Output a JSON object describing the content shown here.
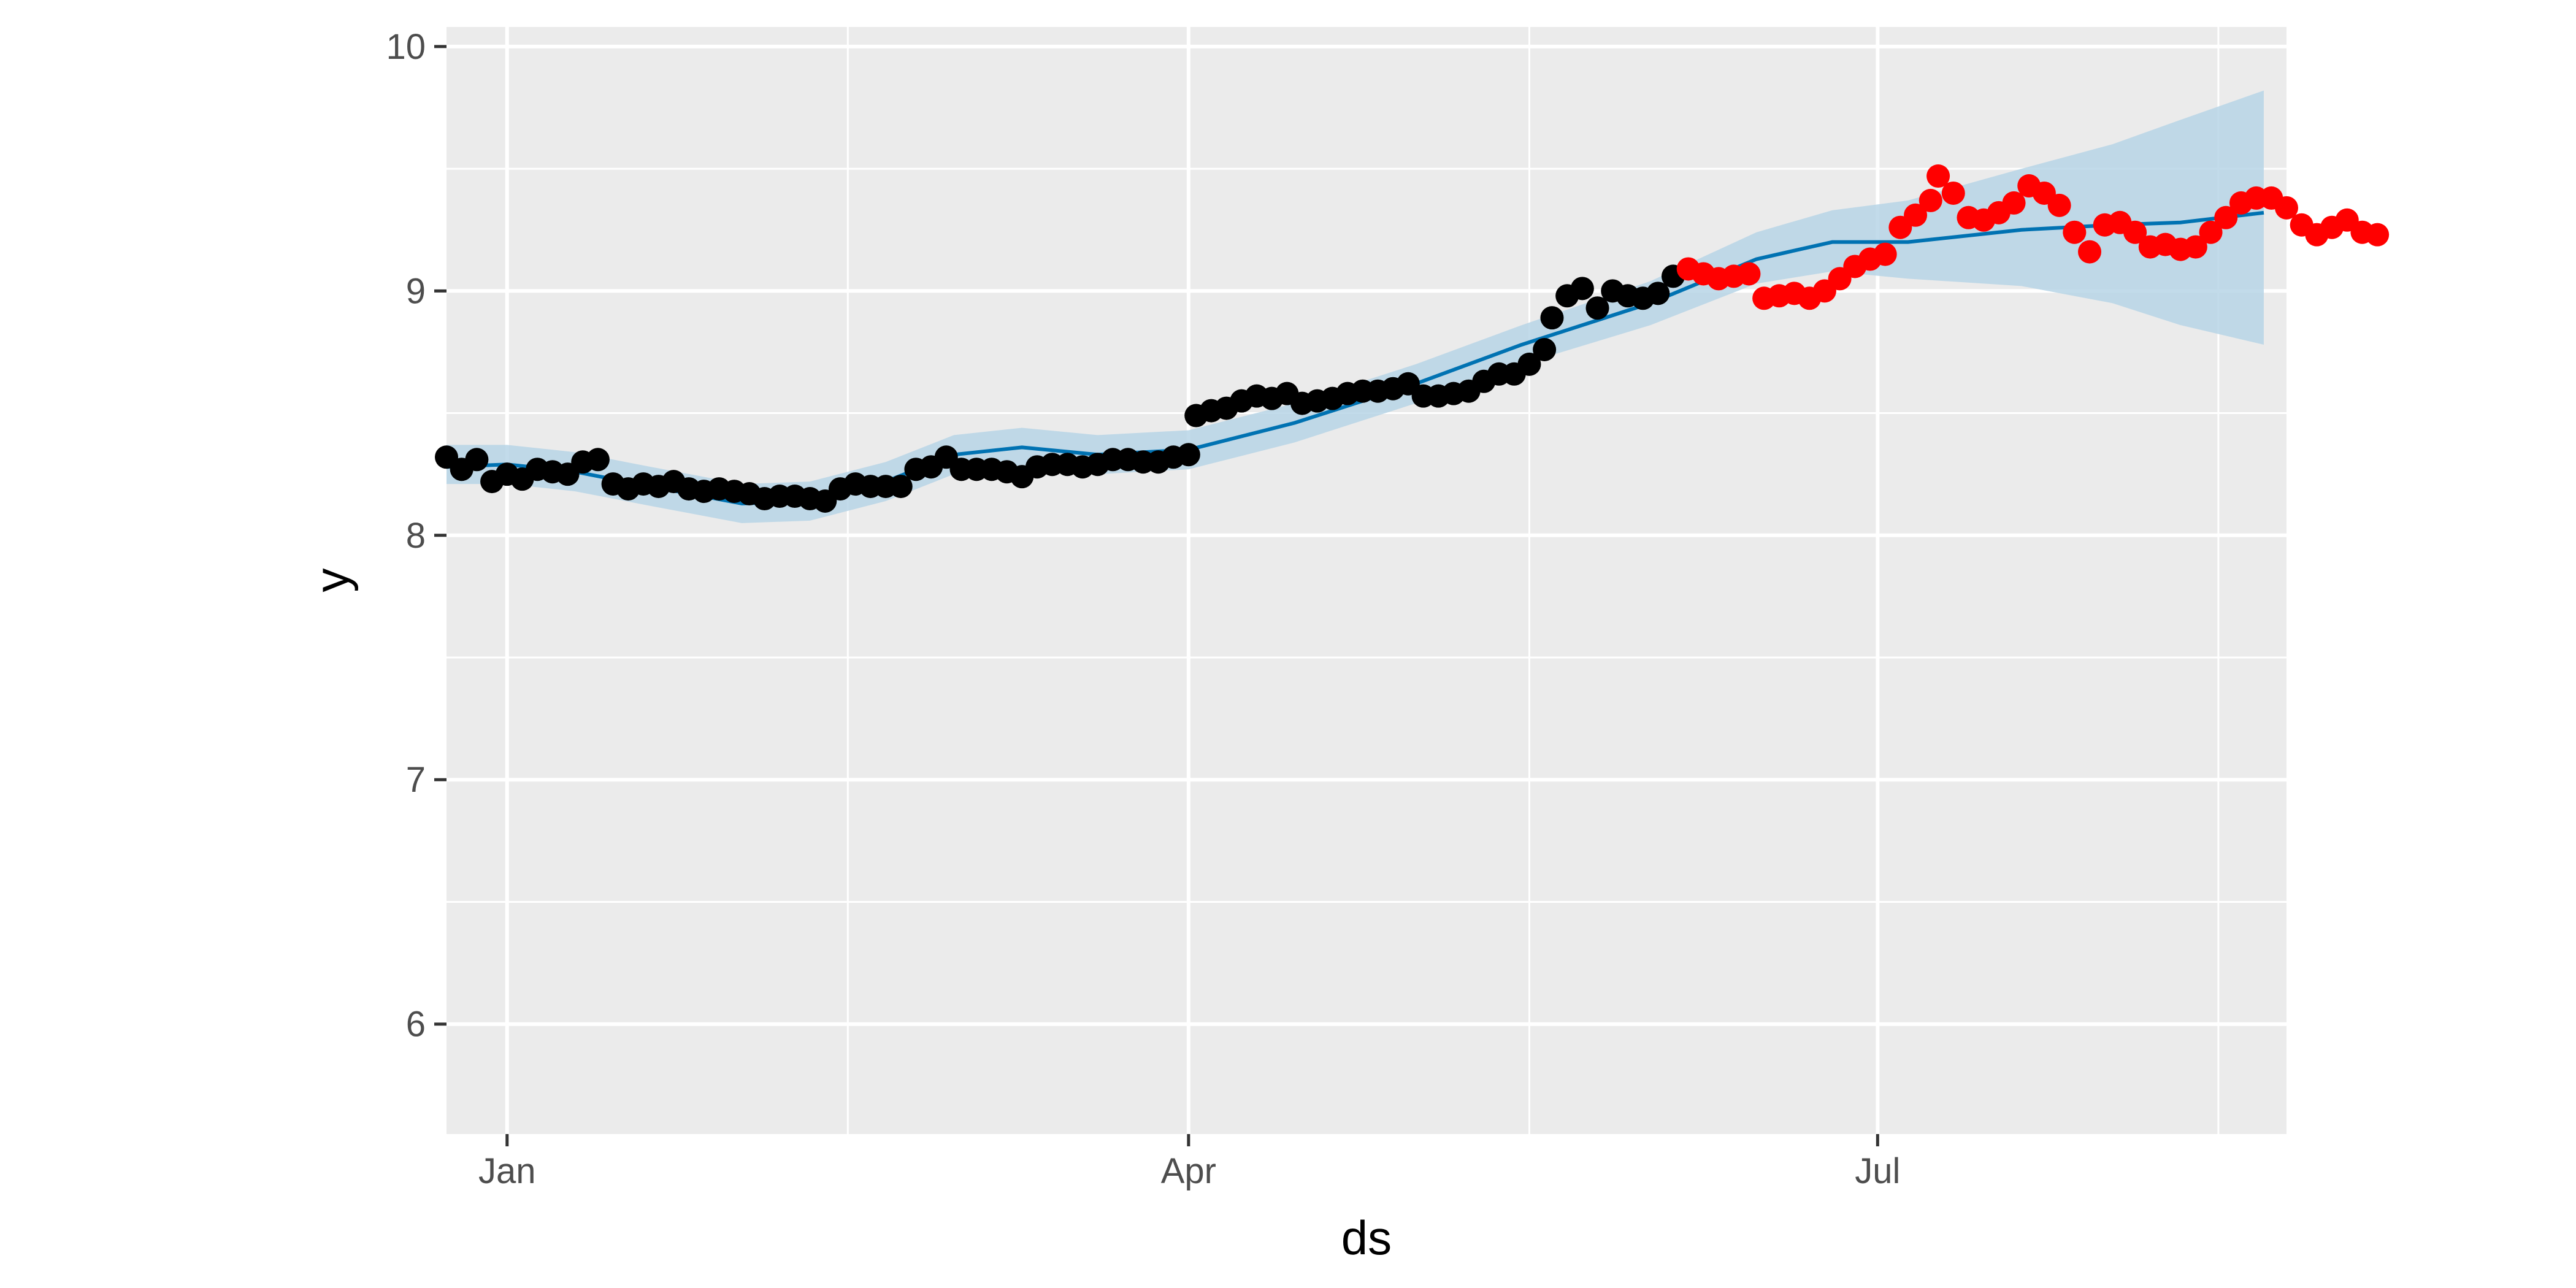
{
  "chart_data": {
    "type": "scatter",
    "title": "",
    "xlabel": "ds",
    "ylabel": "y",
    "x_type": "date",
    "xlim": [
      "2022-12-24",
      "2023-08-24"
    ],
    "ylim": [
      5.55,
      10.08
    ],
    "grid": true,
    "legend": "none",
    "x_ticks": [
      {
        "value": "2023-01-01",
        "label": "Jan"
      },
      {
        "value": "2023-04-01",
        "label": "Apr"
      },
      {
        "value": "2023-07-01",
        "label": "Jul"
      }
    ],
    "y_ticks": [
      6,
      7,
      8,
      9,
      10
    ],
    "colors": {
      "panel": "#ebebeb",
      "grid": "#ffffff",
      "history_points": "#000000",
      "future_points": "#ff0000",
      "forecast_line": "#0072b2",
      "interval_band": "#b7d5e6"
    },
    "forecast_line": [
      {
        "x": "2022-12-24",
        "y": 8.28
      },
      {
        "x": "2023-01-01",
        "y": 8.29
      },
      {
        "x": "2023-01-10",
        "y": 8.26
      },
      {
        "x": "2023-01-20",
        "y": 8.2
      },
      {
        "x": "2023-02-01",
        "y": 8.13
      },
      {
        "x": "2023-02-10",
        "y": 8.14
      },
      {
        "x": "2023-02-20",
        "y": 8.22
      },
      {
        "x": "2023-03-01",
        "y": 8.33
      },
      {
        "x": "2023-03-10",
        "y": 8.36
      },
      {
        "x": "2023-03-20",
        "y": 8.33
      },
      {
        "x": "2023-04-01",
        "y": 8.35
      },
      {
        "x": "2023-04-15",
        "y": 8.46
      },
      {
        "x": "2023-05-01",
        "y": 8.62
      },
      {
        "x": "2023-05-15",
        "y": 8.78
      },
      {
        "x": "2023-06-01",
        "y": 8.95
      },
      {
        "x": "2023-06-15",
        "y": 9.13
      },
      {
        "x": "2023-06-25",
        "y": 9.2
      },
      {
        "x": "2023-07-05",
        "y": 9.2
      },
      {
        "x": "2023-07-20",
        "y": 9.25
      },
      {
        "x": "2023-08-01",
        "y": 9.27
      },
      {
        "x": "2023-08-10",
        "y": 9.28
      },
      {
        "x": "2023-08-21",
        "y": 9.32
      }
    ],
    "interval": [
      {
        "x": "2022-12-24",
        "lower": 8.21,
        "upper": 8.37
      },
      {
        "x": "2023-01-01",
        "lower": 8.21,
        "upper": 8.37
      },
      {
        "x": "2023-01-10",
        "lower": 8.18,
        "upper": 8.34
      },
      {
        "x": "2023-01-20",
        "lower": 8.12,
        "upper": 8.28
      },
      {
        "x": "2023-02-01",
        "lower": 8.05,
        "upper": 8.21
      },
      {
        "x": "2023-02-10",
        "lower": 8.06,
        "upper": 8.22
      },
      {
        "x": "2023-02-20",
        "lower": 8.14,
        "upper": 8.3
      },
      {
        "x": "2023-03-01",
        "lower": 8.25,
        "upper": 8.41
      },
      {
        "x": "2023-03-10",
        "lower": 8.28,
        "upper": 8.44
      },
      {
        "x": "2023-03-20",
        "lower": 8.25,
        "upper": 8.41
      },
      {
        "x": "2023-04-01",
        "lower": 8.27,
        "upper": 8.43
      },
      {
        "x": "2023-04-15",
        "lower": 8.38,
        "upper": 8.54
      },
      {
        "x": "2023-05-01",
        "lower": 8.54,
        "upper": 8.7
      },
      {
        "x": "2023-05-15",
        "lower": 8.7,
        "upper": 8.86
      },
      {
        "x": "2023-06-01",
        "lower": 8.86,
        "upper": 9.04
      },
      {
        "x": "2023-06-15",
        "lower": 9.03,
        "upper": 9.24
      },
      {
        "x": "2023-06-25",
        "lower": 9.08,
        "upper": 9.33
      },
      {
        "x": "2023-07-05",
        "lower": 9.05,
        "upper": 9.37
      },
      {
        "x": "2023-07-20",
        "lower": 9.02,
        "upper": 9.5
      },
      {
        "x": "2023-08-01",
        "lower": 8.95,
        "upper": 9.6
      },
      {
        "x": "2023-08-10",
        "lower": 8.86,
        "upper": 9.7
      },
      {
        "x": "2023-08-21",
        "lower": 8.78,
        "upper": 9.82
      }
    ],
    "series": [
      {
        "color": "#000000",
        "points": [
          {
            "x": "2022-12-24",
            "y": 8.32
          },
          {
            "x": "2022-12-26",
            "y": 8.27
          },
          {
            "x": "2022-12-28",
            "y": 8.31
          },
          {
            "x": "2022-12-30",
            "y": 8.22
          },
          {
            "x": "2023-01-01",
            "y": 8.25
          },
          {
            "x": "2023-01-03",
            "y": 8.23
          },
          {
            "x": "2023-01-05",
            "y": 8.27
          },
          {
            "x": "2023-01-07",
            "y": 8.26
          },
          {
            "x": "2023-01-09",
            "y": 8.25
          },
          {
            "x": "2023-01-11",
            "y": 8.3
          },
          {
            "x": "2023-01-13",
            "y": 8.31
          },
          {
            "x": "2023-01-15",
            "y": 8.21
          },
          {
            "x": "2023-01-17",
            "y": 8.19
          },
          {
            "x": "2023-01-19",
            "y": 8.21
          },
          {
            "x": "2023-01-21",
            "y": 8.2
          },
          {
            "x": "2023-01-23",
            "y": 8.22
          },
          {
            "x": "2023-01-25",
            "y": 8.19
          },
          {
            "x": "2023-01-27",
            "y": 8.18
          },
          {
            "x": "2023-01-29",
            "y": 8.19
          },
          {
            "x": "2023-01-31",
            "y": 8.18
          },
          {
            "x": "2023-02-02",
            "y": 8.17
          },
          {
            "x": "2023-02-04",
            "y": 8.15
          },
          {
            "x": "2023-02-06",
            "y": 8.16
          },
          {
            "x": "2023-02-08",
            "y": 8.16
          },
          {
            "x": "2023-02-10",
            "y": 8.15
          },
          {
            "x": "2023-02-12",
            "y": 8.14
          },
          {
            "x": "2023-02-14",
            "y": 8.19
          },
          {
            "x": "2023-02-16",
            "y": 8.21
          },
          {
            "x": "2023-02-18",
            "y": 8.2
          },
          {
            "x": "2023-02-20",
            "y": 8.2
          },
          {
            "x": "2023-02-22",
            "y": 8.2
          },
          {
            "x": "2023-02-24",
            "y": 8.27
          },
          {
            "x": "2023-02-26",
            "y": 8.28
          },
          {
            "x": "2023-02-28",
            "y": 8.32
          },
          {
            "x": "2023-03-02",
            "y": 8.27
          },
          {
            "x": "2023-03-04",
            "y": 8.27
          },
          {
            "x": "2023-03-06",
            "y": 8.27
          },
          {
            "x": "2023-03-08",
            "y": 8.26
          },
          {
            "x": "2023-03-10",
            "y": 8.24
          },
          {
            "x": "2023-03-12",
            "y": 8.28
          },
          {
            "x": "2023-03-14",
            "y": 8.29
          },
          {
            "x": "2023-03-16",
            "y": 8.29
          },
          {
            "x": "2023-03-18",
            "y": 8.28
          },
          {
            "x": "2023-03-20",
            "y": 8.29
          },
          {
            "x": "2023-03-22",
            "y": 8.31
          },
          {
            "x": "2023-03-24",
            "y": 8.31
          },
          {
            "x": "2023-03-26",
            "y": 8.3
          },
          {
            "x": "2023-03-28",
            "y": 8.3
          },
          {
            "x": "2023-03-30",
            "y": 8.32
          },
          {
            "x": "2023-04-01",
            "y": 8.33
          },
          {
            "x": "2023-04-02",
            "y": 8.49
          },
          {
            "x": "2023-04-04",
            "y": 8.51
          },
          {
            "x": "2023-04-06",
            "y": 8.52
          },
          {
            "x": "2023-04-08",
            "y": 8.55
          },
          {
            "x": "2023-04-10",
            "y": 8.57
          },
          {
            "x": "2023-04-12",
            "y": 8.56
          },
          {
            "x": "2023-04-14",
            "y": 8.58
          },
          {
            "x": "2023-04-16",
            "y": 8.54
          },
          {
            "x": "2023-04-18",
            "y": 8.55
          },
          {
            "x": "2023-04-20",
            "y": 8.56
          },
          {
            "x": "2023-04-22",
            "y": 8.58
          },
          {
            "x": "2023-04-24",
            "y": 8.59
          },
          {
            "x": "2023-04-26",
            "y": 8.59
          },
          {
            "x": "2023-04-28",
            "y": 8.6
          },
          {
            "x": "2023-04-30",
            "y": 8.62
          },
          {
            "x": "2023-05-02",
            "y": 8.57
          },
          {
            "x": "2023-05-04",
            "y": 8.57
          },
          {
            "x": "2023-05-06",
            "y": 8.58
          },
          {
            "x": "2023-05-08",
            "y": 8.59
          },
          {
            "x": "2023-05-10",
            "y": 8.63
          },
          {
            "x": "2023-05-12",
            "y": 8.66
          },
          {
            "x": "2023-05-14",
            "y": 8.66
          },
          {
            "x": "2023-05-16",
            "y": 8.7
          },
          {
            "x": "2023-05-18",
            "y": 8.76
          },
          {
            "x": "2023-05-19",
            "y": 8.89
          },
          {
            "x": "2023-05-21",
            "y": 8.98
          },
          {
            "x": "2023-05-23",
            "y": 9.01
          },
          {
            "x": "2023-05-25",
            "y": 8.93
          },
          {
            "x": "2023-05-27",
            "y": 9.0
          },
          {
            "x": "2023-05-29",
            "y": 8.98
          },
          {
            "x": "2023-05-31",
            "y": 8.97
          },
          {
            "x": "2023-06-02",
            "y": 8.99
          },
          {
            "x": "2023-06-04",
            "y": 9.06
          }
        ]
      },
      {
        "color": "#ff0000",
        "points": [
          {
            "x": "2023-06-06",
            "y": 9.09
          },
          {
            "x": "2023-06-08",
            "y": 9.07
          },
          {
            "x": "2023-06-10",
            "y": 9.05
          },
          {
            "x": "2023-06-12",
            "y": 9.06
          },
          {
            "x": "2023-06-14",
            "y": 9.07
          },
          {
            "x": "2023-06-16",
            "y": 8.97
          },
          {
            "x": "2023-06-18",
            "y": 8.98
          },
          {
            "x": "2023-06-20",
            "y": 8.99
          },
          {
            "x": "2023-06-22",
            "y": 8.97
          },
          {
            "x": "2023-06-24",
            "y": 9.0
          },
          {
            "x": "2023-06-26",
            "y": 9.05
          },
          {
            "x": "2023-06-28",
            "y": 9.1
          },
          {
            "x": "2023-06-30",
            "y": 9.13
          },
          {
            "x": "2023-07-02",
            "y": 9.15
          },
          {
            "x": "2023-07-04",
            "y": 9.26
          },
          {
            "x": "2023-07-06",
            "y": 9.31
          },
          {
            "x": "2023-07-08",
            "y": 9.37
          },
          {
            "x": "2023-07-09",
            "y": 9.47
          },
          {
            "x": "2023-07-11",
            "y": 9.4
          },
          {
            "x": "2023-07-13",
            "y": 9.3
          },
          {
            "x": "2023-07-15",
            "y": 9.29
          },
          {
            "x": "2023-07-17",
            "y": 9.32
          },
          {
            "x": "2023-07-19",
            "y": 9.36
          },
          {
            "x": "2023-07-21",
            "y": 9.43
          },
          {
            "x": "2023-07-23",
            "y": 9.4
          },
          {
            "x": "2023-07-25",
            "y": 9.35
          },
          {
            "x": "2023-07-27",
            "y": 9.24
          },
          {
            "x": "2023-07-29",
            "y": 9.16
          },
          {
            "x": "2023-07-31",
            "y": 9.27
          },
          {
            "x": "2023-08-02",
            "y": 9.28
          },
          {
            "x": "2023-08-04",
            "y": 9.24
          },
          {
            "x": "2023-08-06",
            "y": 9.18
          },
          {
            "x": "2023-08-08",
            "y": 9.19
          },
          {
            "x": "2023-08-10",
            "y": 9.17
          },
          {
            "x": "2023-08-12",
            "y": 9.18
          },
          {
            "x": "2023-08-14",
            "y": 9.24
          },
          {
            "x": "2023-08-16",
            "y": 9.3
          },
          {
            "x": "2023-08-18",
            "y": 9.36
          },
          {
            "x": "2023-08-20",
            "y": 9.38
          },
          {
            "x": "2023-08-22",
            "y": 9.38
          },
          {
            "x": "2023-08-24",
            "y": 9.34
          },
          {
            "x": "2023-08-26",
            "y": 9.27
          },
          {
            "x": "2023-08-28",
            "y": 9.23
          },
          {
            "x": "2023-08-30",
            "y": 9.26
          },
          {
            "x": "2023-09-01",
            "y": 9.29
          },
          {
            "x": "2023-09-03",
            "y": 9.24
          },
          {
            "x": "2023-09-05",
            "y": 9.23
          }
        ]
      }
    ]
  }
}
